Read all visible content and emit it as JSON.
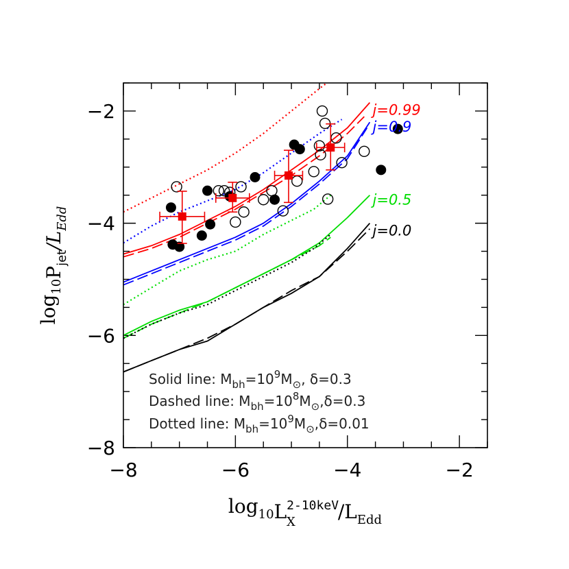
{
  "chart_data": {
    "type": "scatter",
    "xlabel": {
      "base": "log",
      "sub": "10",
      "main": "L",
      "sup": "2-10keV",
      "subx": "X",
      "tail": "/L",
      "tail_sub": "Edd"
    },
    "ylabel": {
      "base": "log",
      "sub": "10",
      "main": "P",
      "sub2": "jet",
      "tail": "/L",
      "tail_sub": "Edd"
    },
    "xlim": [
      -8,
      -1.5
    ],
    "ylim": [
      -8,
      -1.5
    ],
    "x_ticks": [
      -8,
      -6,
      -4,
      -2
    ],
    "y_ticks": [
      -8,
      -6,
      -4,
      -2
    ],
    "x_tick_labels": [
      "−8",
      "−6",
      "−4",
      "−2"
    ],
    "y_tick_labels": [
      "−8",
      "−6",
      "−4",
      "−2"
    ],
    "grid": false,
    "models": [
      {
        "spin_label": "j=0.99",
        "label_pos": [
          -3.55,
          -1.97
        ],
        "color": "#ff0000",
        "solid": [
          [
            -8,
            -4.55
          ],
          [
            -7.5,
            -4.4
          ],
          [
            -7,
            -4.2
          ],
          [
            -6.5,
            -3.95
          ],
          [
            -6,
            -3.7
          ],
          [
            -5.5,
            -3.4
          ],
          [
            -5,
            -3.05
          ],
          [
            -4.5,
            -2.7
          ],
          [
            -4,
            -2.3
          ],
          [
            -3.6,
            -1.85
          ]
        ],
        "dashed": [
          [
            -8,
            -4.6
          ],
          [
            -7.5,
            -4.45
          ],
          [
            -7,
            -4.25
          ],
          [
            -6.5,
            -4.0
          ],
          [
            -6,
            -3.75
          ],
          [
            -5.5,
            -3.45
          ],
          [
            -5,
            -3.15
          ],
          [
            -4.5,
            -2.8
          ],
          [
            -4,
            -2.4
          ],
          [
            -3.7,
            -2.1
          ]
        ],
        "dotted": [
          [
            -8,
            -3.8
          ],
          [
            -7.5,
            -3.55
          ],
          [
            -7,
            -3.3
          ],
          [
            -6.5,
            -3.05
          ],
          [
            -6,
            -2.75
          ],
          [
            -5.5,
            -2.4
          ],
          [
            -5,
            -2.0
          ],
          [
            -4.5,
            -1.6
          ],
          [
            -4.1,
            -1.3
          ]
        ]
      },
      {
        "spin_label": "j=0.9",
        "label_pos": [
          -3.55,
          -2.27
        ],
        "color": "#0000ff",
        "solid": [
          [
            -8,
            -5.05
          ],
          [
            -7.5,
            -4.85
          ],
          [
            -7,
            -4.65
          ],
          [
            -6.5,
            -4.45
          ],
          [
            -6,
            -4.25
          ],
          [
            -5.5,
            -4.0
          ],
          [
            -5,
            -3.65
          ],
          [
            -4.5,
            -3.25
          ],
          [
            -4,
            -2.8
          ],
          [
            -3.6,
            -2.2
          ]
        ],
        "dashed": [
          [
            -8,
            -5.1
          ],
          [
            -7.5,
            -4.9
          ],
          [
            -7,
            -4.7
          ],
          [
            -6.5,
            -4.5
          ],
          [
            -6,
            -4.3
          ],
          [
            -5.5,
            -4.05
          ],
          [
            -5,
            -3.7
          ],
          [
            -4.5,
            -3.3
          ],
          [
            -4,
            -2.85
          ],
          [
            -3.65,
            -2.3
          ]
        ],
        "dotted": [
          [
            -8,
            -4.35
          ],
          [
            -7.5,
            -4.05
          ],
          [
            -7,
            -3.8
          ],
          [
            -6.5,
            -3.6
          ],
          [
            -6,
            -3.4
          ],
          [
            -5.5,
            -3.1
          ],
          [
            -5,
            -2.75
          ],
          [
            -4.5,
            -2.4
          ],
          [
            -4.1,
            -2.15
          ]
        ]
      },
      {
        "spin_label": "j=0.5",
        "label_pos": [
          -3.55,
          -3.57
        ],
        "color": "#00dd00",
        "solid": [
          [
            -8,
            -6.0
          ],
          [
            -7.5,
            -5.75
          ],
          [
            -7,
            -5.55
          ],
          [
            -6.5,
            -5.4
          ],
          [
            -6,
            -5.15
          ],
          [
            -5.5,
            -4.9
          ],
          [
            -5,
            -4.65
          ],
          [
            -4.5,
            -4.35
          ],
          [
            -4,
            -3.9
          ],
          [
            -3.6,
            -3.5
          ]
        ],
        "dashed": [
          [
            -8,
            -6.05
          ],
          [
            -7.5,
            -5.8
          ],
          [
            -7,
            -5.6
          ],
          [
            -6.5,
            -5.4
          ],
          [
            -6,
            -5.15
          ],
          [
            -5.5,
            -4.9
          ],
          [
            -5,
            -4.65
          ],
          [
            -4.5,
            -4.4
          ],
          [
            -4.3,
            -4.25
          ]
        ],
        "dotted": [
          [
            -8,
            -5.45
          ],
          [
            -7.5,
            -5.15
          ],
          [
            -7,
            -4.85
          ],
          [
            -6.5,
            -4.65
          ],
          [
            -6,
            -4.5
          ],
          [
            -5.5,
            -4.2
          ],
          [
            -5,
            -3.95
          ],
          [
            -4.6,
            -3.75
          ],
          [
            -4.3,
            -3.5
          ]
        ]
      },
      {
        "spin_label": "j=0.0",
        "label_pos": [
          -3.55,
          -4.12
        ],
        "color": "#000000",
        "solid": [
          [
            -8,
            -6.65
          ],
          [
            -7.5,
            -6.45
          ],
          [
            -7,
            -6.25
          ],
          [
            -6.5,
            -6.1
          ],
          [
            -6,
            -5.8
          ],
          [
            -5.5,
            -5.5
          ],
          [
            -5,
            -5.25
          ],
          [
            -4.5,
            -4.95
          ],
          [
            -4,
            -4.45
          ],
          [
            -3.6,
            -4.0
          ]
        ],
        "dashed": [
          [
            -8,
            -6.65
          ],
          [
            -7.5,
            -6.45
          ],
          [
            -7,
            -6.25
          ],
          [
            -6.5,
            -6.05
          ],
          [
            -6,
            -5.8
          ],
          [
            -5.5,
            -5.5
          ],
          [
            -5,
            -5.2
          ],
          [
            -4.5,
            -4.95
          ],
          [
            -4,
            -4.5
          ],
          [
            -3.6,
            -4.1
          ]
        ],
        "dotted": [
          [
            -8,
            -6.05
          ],
          [
            -7.5,
            -5.8
          ],
          [
            -7,
            -5.6
          ],
          [
            -6.5,
            -5.45
          ],
          [
            -6,
            -5.2
          ],
          [
            -5.5,
            -4.95
          ],
          [
            -5,
            -4.7
          ],
          [
            -4.6,
            -4.45
          ],
          [
            -4.3,
            -4.2
          ]
        ]
      }
    ],
    "filled_points": [
      [
        -7.15,
        -3.72
      ],
      [
        -7.12,
        -4.38
      ],
      [
        -7.0,
        -4.42
      ],
      [
        -6.6,
        -4.22
      ],
      [
        -6.5,
        -3.42
      ],
      [
        -6.45,
        -4.02
      ],
      [
        -6.1,
        -3.52
      ],
      [
        -5.65,
        -3.18
      ],
      [
        -5.3,
        -3.58
      ],
      [
        -4.95,
        -2.6
      ],
      [
        -4.85,
        -2.68
      ],
      [
        -3.4,
        -3.05
      ],
      [
        -3.1,
        -2.32
      ]
    ],
    "open_points": [
      [
        -7.05,
        -3.35
      ],
      [
        -6.3,
        -3.42
      ],
      [
        -6.2,
        -3.42
      ],
      [
        -6.1,
        -3.45
      ],
      [
        -5.9,
        -3.35
      ],
      [
        -5.85,
        -3.8
      ],
      [
        -6.0,
        -3.98
      ],
      [
        -5.5,
        -3.58
      ],
      [
        -5.35,
        -3.42
      ],
      [
        -5.15,
        -3.78
      ],
      [
        -4.9,
        -3.25
      ],
      [
        -4.6,
        -3.08
      ],
      [
        -4.5,
        -2.62
      ],
      [
        -4.48,
        -2.78
      ],
      [
        -4.45,
        -2.0
      ],
      [
        -4.4,
        -2.22
      ],
      [
        -4.35,
        -3.57
      ],
      [
        -4.2,
        -2.48
      ],
      [
        -4.1,
        -2.92
      ],
      [
        -3.7,
        -2.72
      ]
    ],
    "binned": [
      {
        "x": -6.95,
        "y": -3.88,
        "xerr": 0.4,
        "yerr_lo": 0.48,
        "yerr_hi": 0.45
      },
      {
        "x": -6.05,
        "y": -3.55,
        "xerr": 0.3,
        "yerr_lo": 0.25,
        "yerr_hi": 0.28
      },
      {
        "x": -5.05,
        "y": -3.15,
        "xerr": 0.25,
        "yerr_lo": 0.48,
        "yerr_hi": 0.45
      },
      {
        "x": -4.3,
        "y": -2.65,
        "xerr": 0.25,
        "yerr_lo": 0.4,
        "yerr_hi": 0.42
      }
    ],
    "binned_color": "#ee0000",
    "annotations": [
      {
        "prefix": "Solid line: M",
        "sub": "bh",
        "mid": "=10",
        "sup": "9",
        "m": "M",
        "msub": "⊙",
        "tail": ",  δ=0.3"
      },
      {
        "prefix": "Dashed line: M",
        "sub": "bh",
        "mid": "=10",
        "sup": "8",
        "m": "M",
        "msub": "⊙",
        "tail": ",δ=0.3"
      },
      {
        "prefix": "Dotted line: M",
        "sub": "bh",
        "mid": "=10",
        "sup": "9",
        "m": "M",
        "msub": "⊙",
        "tail": ",δ=0.01"
      }
    ]
  }
}
